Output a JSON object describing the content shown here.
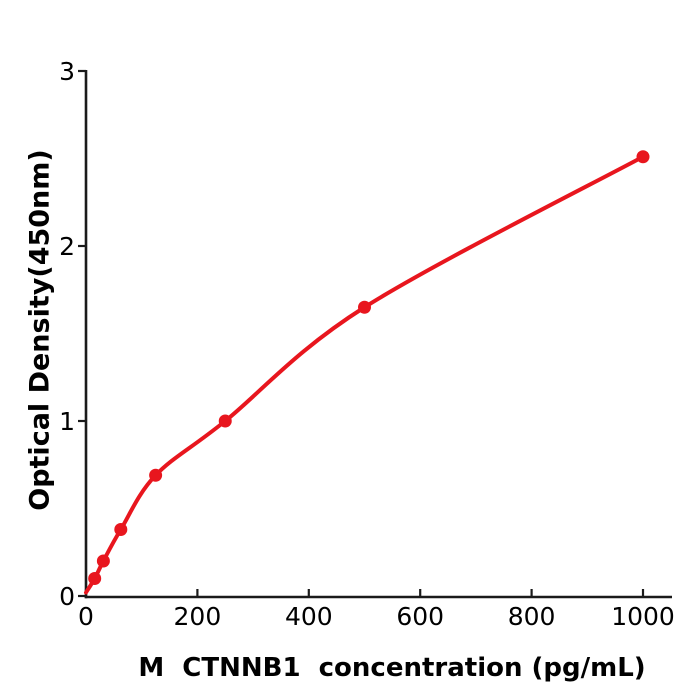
{
  "figure": {
    "background": "#ffffff"
  },
  "chart_data": {
    "type": "scatter",
    "title": "",
    "xlabel": "M  CTNNB1  concentration (pg/mL)",
    "ylabel": "Optical Density(450nm)",
    "x": [
      15.6,
      31.2,
      62.5,
      125,
      250,
      500,
      1000
    ],
    "series": [
      {
        "name": "Optical Density (450nm)",
        "values": [
          0.1,
          0.2,
          0.38,
          0.69,
          1.0,
          1.65,
          2.51
        ]
      }
    ],
    "curve_start": {
      "x": 0,
      "y": 0.02
    },
    "x_ticks": [
      0,
      200,
      400,
      600,
      800,
      1000
    ],
    "y_ticks": [
      0,
      1,
      2,
      3
    ],
    "xlim": [
      0,
      1052
    ],
    "ylim": [
      0,
      3
    ],
    "grid": false,
    "legend": null,
    "marker_color": "#e8161e",
    "line_color": "#e8161e",
    "axis_color": "#1a1a1a",
    "text_color": "#000000"
  }
}
